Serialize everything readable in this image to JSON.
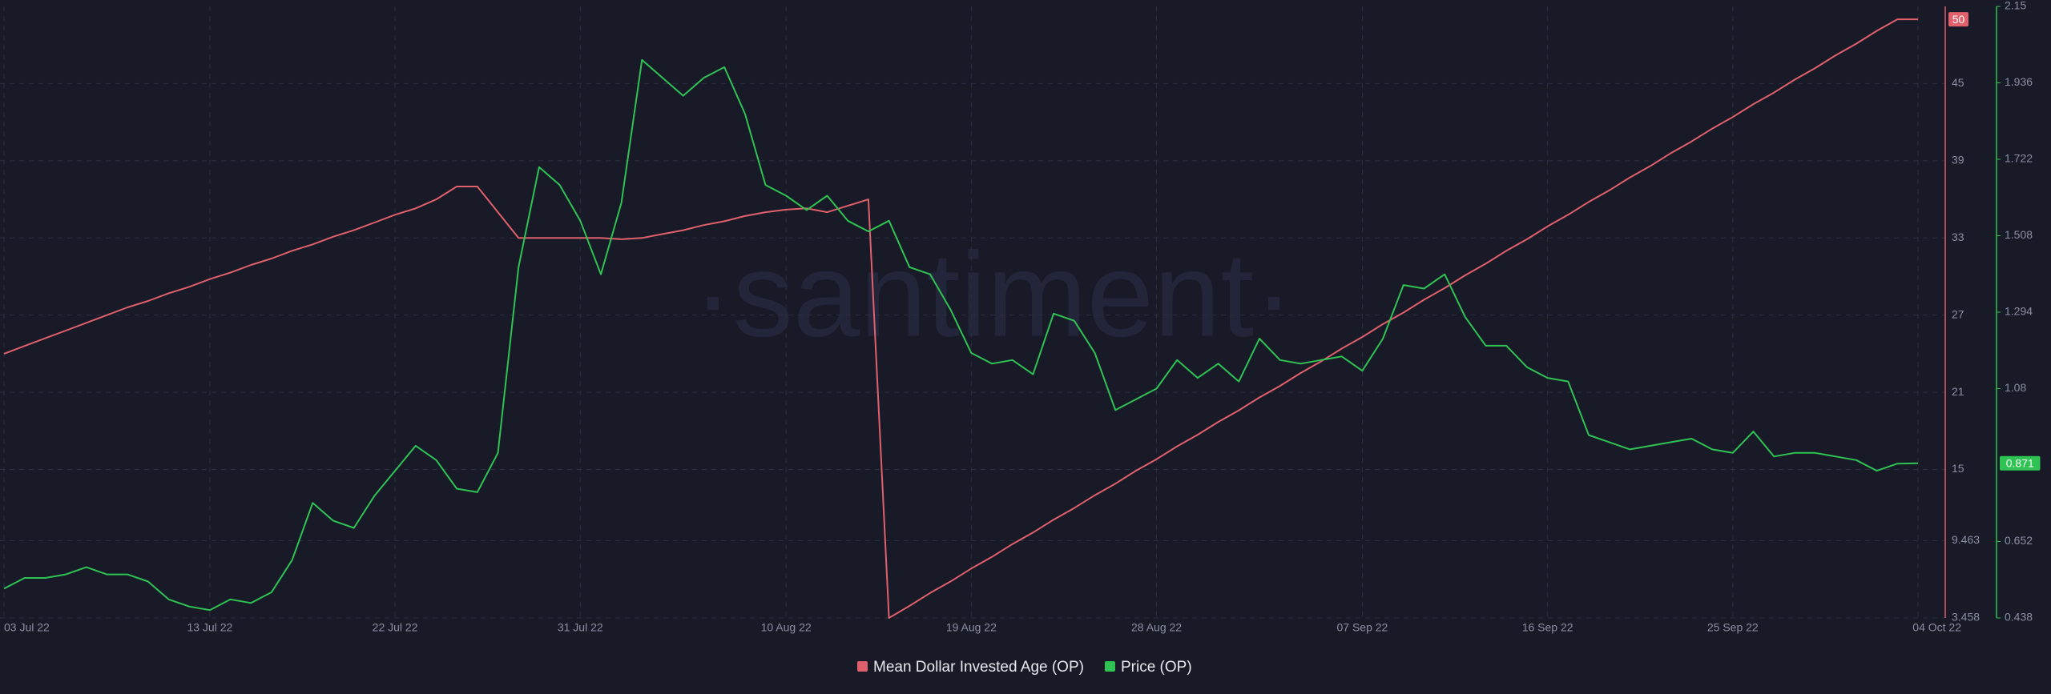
{
  "chart_data": {
    "type": "line",
    "watermark": "·santiment·",
    "x": [
      "03 Jul 22",
      "04 Jul 22",
      "05 Jul 22",
      "06 Jul 22",
      "07 Jul 22",
      "08 Jul 22",
      "09 Jul 22",
      "10 Jul 22",
      "11 Jul 22",
      "12 Jul 22",
      "13 Jul 22",
      "14 Jul 22",
      "15 Jul 22",
      "16 Jul 22",
      "17 Jul 22",
      "18 Jul 22",
      "19 Jul 22",
      "20 Jul 22",
      "21 Jul 22",
      "22 Jul 22",
      "23 Jul 22",
      "24 Jul 22",
      "25 Jul 22",
      "26 Jul 22",
      "27 Jul 22",
      "28 Jul 22",
      "29 Jul 22",
      "30 Jul 22",
      "31 Jul 22",
      "01 Aug 22",
      "02 Aug 22",
      "03 Aug 22",
      "04 Aug 22",
      "05 Aug 22",
      "06 Aug 22",
      "07 Aug 22",
      "08 Aug 22",
      "09 Aug 22",
      "10 Aug 22",
      "11 Aug 22",
      "12 Aug 22",
      "13 Aug 22",
      "14 Aug 22",
      "15 Aug 22",
      "16 Aug 22",
      "17 Aug 22",
      "18 Aug 22",
      "19 Aug 22",
      "20 Aug 22",
      "21 Aug 22",
      "22 Aug 22",
      "23 Aug 22",
      "24 Aug 22",
      "25 Aug 22",
      "26 Aug 22",
      "27 Aug 22",
      "28 Aug 22",
      "29 Aug 22",
      "30 Aug 22",
      "31 Aug 22",
      "01 Sep 22",
      "02 Sep 22",
      "03 Sep 22",
      "04 Sep 22",
      "05 Sep 22",
      "06 Sep 22",
      "07 Sep 22",
      "08 Sep 22",
      "09 Sep 22",
      "10 Sep 22",
      "11 Sep 22",
      "12 Sep 22",
      "13 Sep 22",
      "14 Sep 22",
      "15 Sep 22",
      "16 Sep 22",
      "17 Sep 22",
      "18 Sep 22",
      "19 Sep 22",
      "20 Sep 22",
      "21 Sep 22",
      "22 Sep 22",
      "23 Sep 22",
      "24 Sep 22",
      "25 Sep 22",
      "26 Sep 22",
      "27 Sep 22",
      "28 Sep 22",
      "29 Sep 22",
      "30 Sep 22",
      "01 Oct 22",
      "02 Oct 22",
      "03 Oct 22",
      "04 Oct 22"
    ],
    "xticks": [
      "03 Jul 22",
      "13 Jul 22",
      "22 Jul 22",
      "31 Jul 22",
      "10 Aug 22",
      "19 Aug 22",
      "28 Aug 22",
      "07 Sep 22",
      "16 Sep 22",
      "25 Sep 22",
      "04 Oct 22"
    ],
    "ylim": [
      3.458,
      51
    ],
    "yticks": [
      3.458,
      9.463,
      15,
      21,
      27,
      33,
      39,
      45
    ],
    "y2lim": [
      0.438,
      2.15
    ],
    "y2ticks": [
      0.438,
      0.652,
      1.08,
      1.294,
      1.508,
      1.722,
      1.936,
      2.15
    ],
    "grid": true,
    "series": [
      {
        "name": "Mean Dollar Invested Age (OP)",
        "color": "#e0606b",
        "axis": "y",
        "values": [
          24,
          24.6,
          25.2,
          25.8,
          26.4,
          27,
          27.6,
          28.1,
          28.7,
          29.2,
          29.8,
          30.3,
          30.9,
          31.4,
          32,
          32.5,
          33.1,
          33.6,
          34.2,
          34.8,
          35.3,
          36,
          37,
          37,
          35,
          33,
          33,
          33,
          33,
          33,
          32.9,
          33,
          33.3,
          33.6,
          34,
          34.3,
          34.7,
          35,
          35.2,
          35.3,
          35,
          35.5,
          36,
          3.458,
          4.4,
          5.4,
          6.3,
          7.3,
          8.2,
          9.2,
          10.1,
          11.1,
          12,
          13,
          13.9,
          14.9,
          15.8,
          16.8,
          17.7,
          18.7,
          19.6,
          20.6,
          21.5,
          22.5,
          23.4,
          24.4,
          25.3,
          26.3,
          27.2,
          28.2,
          29.1,
          30.1,
          31,
          32,
          32.9,
          33.9,
          34.8,
          35.8,
          36.7,
          37.7,
          38.6,
          39.6,
          40.5,
          41.5,
          42.4,
          43.4,
          44.3,
          45.3,
          46.2,
          47.2,
          48.1,
          49.1,
          50,
          50
        ]
      },
      {
        "name": "Price (OP)",
        "color": "#2fc353",
        "axis": "y2",
        "values": [
          0.52,
          0.55,
          0.55,
          0.56,
          0.58,
          0.56,
          0.56,
          0.54,
          0.49,
          0.47,
          0.46,
          0.49,
          0.48,
          0.51,
          0.6,
          0.76,
          0.71,
          0.69,
          0.78,
          0.85,
          0.92,
          0.88,
          0.8,
          0.79,
          0.9,
          1.42,
          1.7,
          1.65,
          1.55,
          1.4,
          1.6,
          2,
          1.95,
          1.9,
          1.95,
          1.98,
          1.85,
          1.65,
          1.62,
          1.58,
          1.62,
          1.55,
          1.52,
          1.55,
          1.42,
          1.4,
          1.3,
          1.18,
          1.15,
          1.16,
          1.12,
          1.29,
          1.27,
          1.18,
          1.02,
          1.05,
          1.08,
          1.16,
          1.11,
          1.15,
          1.1,
          1.22,
          1.16,
          1.15,
          1.16,
          1.17,
          1.13,
          1.22,
          1.37,
          1.36,
          1.4,
          1.28,
          1.2,
          1.2,
          1.14,
          1.11,
          1.1,
          0.95,
          0.93,
          0.91,
          0.92,
          0.93,
          0.94,
          0.91,
          0.9,
          0.96,
          0.89,
          0.9,
          0.9,
          0.89,
          0.88,
          0.85,
          0.87,
          0.871
        ]
      }
    ]
  }
}
